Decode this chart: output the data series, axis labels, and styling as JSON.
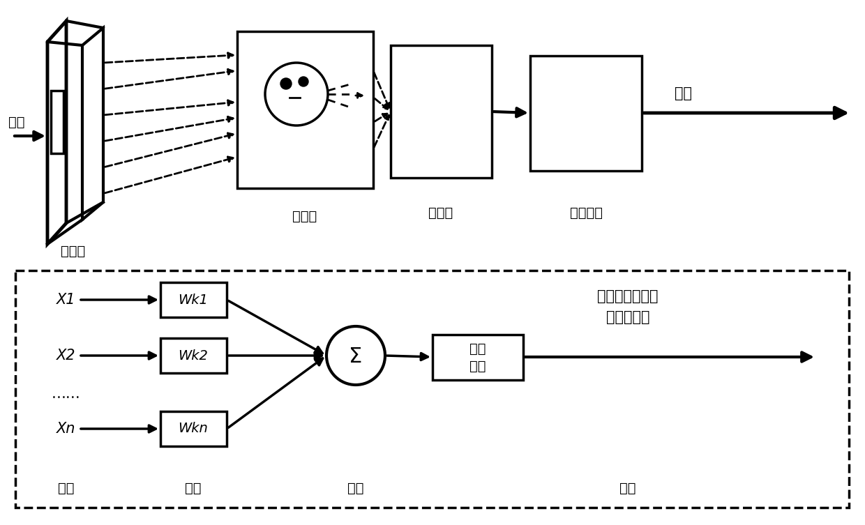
{
  "bg_color": "#ffffff",
  "top_labels": [
    "卷积层",
    "池化层",
    "卷积层",
    "全连接层"
  ],
  "bottom_title_line1": "卷积层、池化层",
  "bottom_title_line2": "内部结构图",
  "input_label": "输入",
  "output_label": "输出",
  "x_labels": [
    "X1",
    "X2",
    "……",
    "Xn"
  ],
  "w_labels": [
    "Wk1",
    "Wk2",
    "Wkn"
  ],
  "sigma": "Σ",
  "activation_line1": "激活",
  "activation_line2": "函数",
  "bottom_labels": [
    "输入",
    "加权",
    "求和",
    "输出"
  ]
}
